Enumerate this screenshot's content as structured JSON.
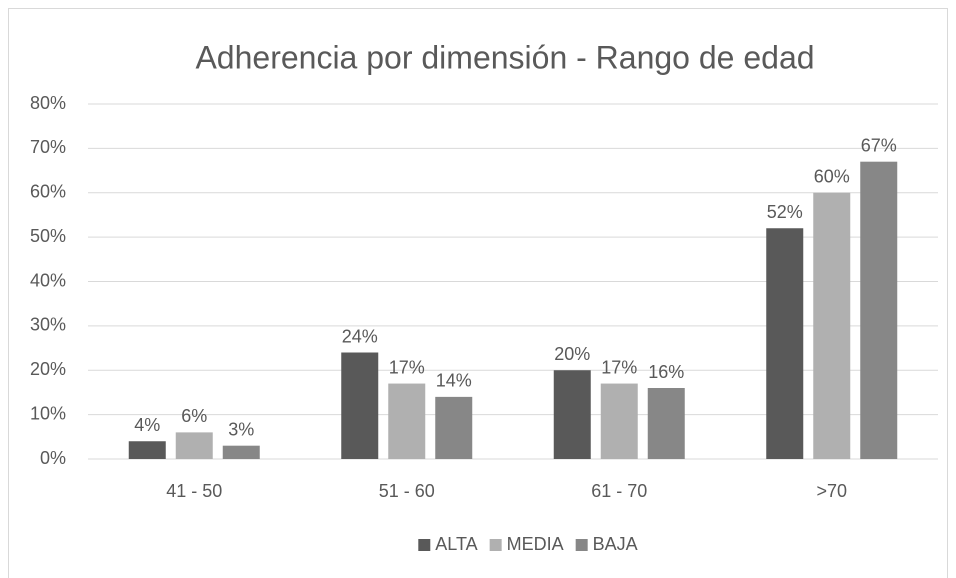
{
  "chart_data": {
    "type": "bar",
    "title": "Adherencia por dimensión - Rango de edad",
    "categories": [
      "41 - 50",
      "51 - 60",
      "61 - 70",
      ">70"
    ],
    "series": [
      {
        "name": "ALTA",
        "color": "#595959",
        "values": [
          4,
          24,
          20,
          52
        ],
        "value_labels": [
          "4%",
          "24%",
          "20%",
          "52%"
        ]
      },
      {
        "name": "MEDIA",
        "color": "#b0b0b0",
        "values": [
          6,
          17,
          17,
          60
        ],
        "value_labels": [
          "6%",
          "17%",
          "17%",
          "60%"
        ]
      },
      {
        "name": "BAJA",
        "color": "#878787",
        "values": [
          3,
          14,
          16,
          67
        ],
        "value_labels": [
          "3%",
          "14%",
          "16%",
          "67%"
        ]
      }
    ],
    "ylim": [
      0,
      80
    ],
    "yticks": [
      {
        "value": 0,
        "label": "0%"
      },
      {
        "value": 10,
        "label": "10%"
      },
      {
        "value": 20,
        "label": "20%"
      },
      {
        "value": 30,
        "label": "30%"
      },
      {
        "value": 40,
        "label": "40%"
      },
      {
        "value": 50,
        "label": "50%"
      },
      {
        "value": 60,
        "label": "60%"
      },
      {
        "value": 70,
        "label": "70%"
      },
      {
        "value": 80,
        "label": "80%"
      }
    ],
    "grid": true,
    "legend": "bottom"
  }
}
